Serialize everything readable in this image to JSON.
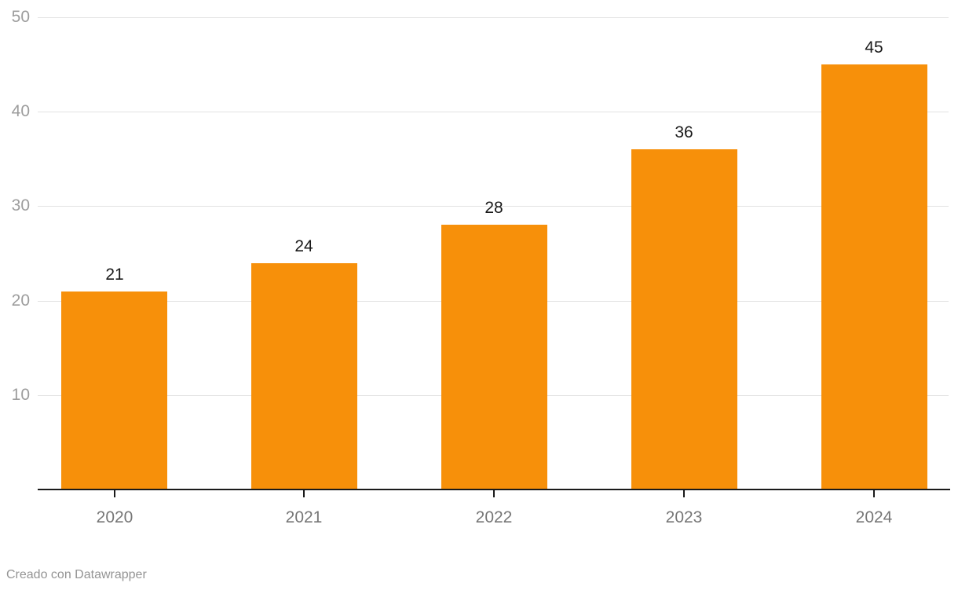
{
  "chart_data": {
    "type": "bar",
    "categories": [
      "2020",
      "2021",
      "2022",
      "2023",
      "2024"
    ],
    "values": [
      21,
      24,
      28,
      36,
      45
    ],
    "title": "",
    "xlabel": "",
    "ylabel": "",
    "ylim": [
      0,
      50
    ],
    "yticks": [
      10,
      20,
      30,
      40,
      50
    ],
    "grid": true,
    "data_labels": [
      21,
      24,
      28,
      36,
      45
    ],
    "legend": "none",
    "bar_color": "#F7900A",
    "axis_color": "#1a1a1a",
    "gridline_color": "#e2e2e2",
    "y_label_color": "#9d9d9d",
    "x_label_color": "#767676",
    "value_label_color": "#1a1a1a"
  },
  "footer": {
    "attribution": "Creado con Datawrapper"
  }
}
